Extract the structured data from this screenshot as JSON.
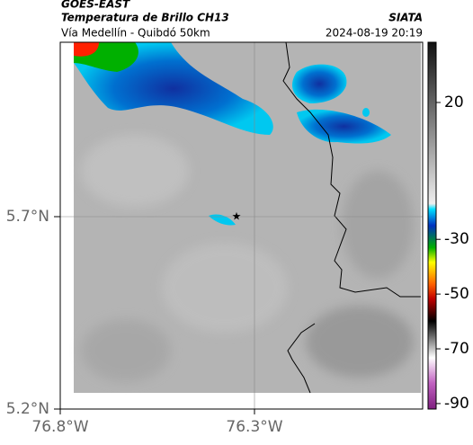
{
  "header": {
    "title": "GOES-EAST",
    "subtitle": "Temperatura de Brillo CH13",
    "route": "Vía Medellín - Quibdó 50km",
    "source": "SIATA",
    "datetime": "2024-08-19 20:19"
  },
  "map": {
    "lat_labels": [
      "5.7°N",
      "5.2°N"
    ],
    "lon_labels": [
      "76.8°W",
      "76.3°W"
    ]
  },
  "colorbar": {
    "range": [
      -92,
      42
    ],
    "ticks": [
      20,
      -30,
      -50,
      -70,
      -90
    ]
  }
}
